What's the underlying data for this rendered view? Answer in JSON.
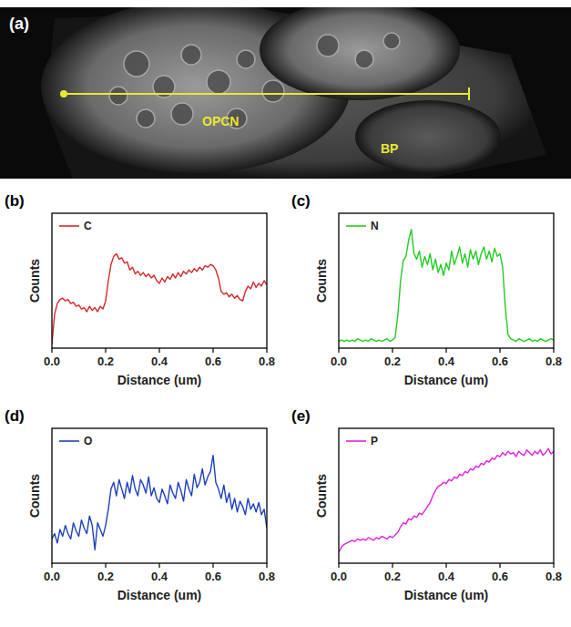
{
  "image": {
    "panel_label": "(a)",
    "labels": [
      "OPCN",
      "BP"
    ]
  },
  "chart_data": [
    {
      "type": "line",
      "panel_label": "(b)",
      "x_label": "Distance (um)",
      "y_label": "Counts",
      "xlim": [
        0,
        0.8
      ],
      "ylim": [
        0,
        100
      ],
      "xticks": [
        {
          "value": 0,
          "label": "0.0"
        },
        {
          "value": 0.2,
          "label": "0.2"
        },
        {
          "value": 0.4,
          "label": "0.4"
        },
        {
          "value": 0.6,
          "label": "0.6"
        },
        {
          "value": 0.8,
          "label": "0.8"
        }
      ],
      "tick_labels": "x",
      "grid": false,
      "legend": "upper left",
      "line_style": "solid",
      "x": [
        0,
        0.01,
        0.02,
        0.03,
        0.04,
        0.05,
        0.06,
        0.07,
        0.08,
        0.09,
        0.1,
        0.11,
        0.12,
        0.13,
        0.14,
        0.15,
        0.16,
        0.17,
        0.18,
        0.19,
        0.2,
        0.21,
        0.22,
        0.23,
        0.24,
        0.25,
        0.26,
        0.27,
        0.28,
        0.29,
        0.3,
        0.31,
        0.32,
        0.33,
        0.34,
        0.35,
        0.36,
        0.37,
        0.38,
        0.39,
        0.4,
        0.41,
        0.42,
        0.43,
        0.44,
        0.45,
        0.46,
        0.47,
        0.48,
        0.49,
        0.5,
        0.51,
        0.52,
        0.53,
        0.54,
        0.55,
        0.56,
        0.57,
        0.58,
        0.59,
        0.6,
        0.61,
        0.62,
        0.63,
        0.64,
        0.65,
        0.66,
        0.67,
        0.68,
        0.69,
        0.7,
        0.71,
        0.72,
        0.73,
        0.74,
        0.75,
        0.76,
        0.77,
        0.78,
        0.79,
        0.8
      ],
      "series": [
        {
          "name": "C",
          "color": "#d62728",
          "values": [
            3,
            25,
            33,
            36,
            37,
            35,
            36,
            33,
            34,
            31,
            32,
            29,
            30,
            27,
            31,
            28,
            30,
            27,
            31,
            29,
            35,
            50,
            62,
            68,
            70,
            66,
            67,
            63,
            64,
            58,
            60,
            55,
            57,
            54,
            56,
            53,
            55,
            52,
            54,
            50,
            48,
            52,
            49,
            53,
            51,
            55,
            52,
            56,
            53,
            57,
            55,
            58,
            56,
            59,
            57,
            60,
            58,
            61,
            60,
            62,
            61,
            58,
            52,
            42,
            40,
            41,
            38,
            40,
            37,
            39,
            36,
            35,
            42,
            46,
            44,
            49,
            45,
            48,
            46,
            50,
            47
          ]
        }
      ]
    },
    {
      "type": "line",
      "panel_label": "(c)",
      "x_label": "Distance (um)",
      "y_label": "Counts",
      "xlim": [
        0,
        0.8
      ],
      "ylim": [
        0,
        100
      ],
      "xticks": [
        {
          "value": 0,
          "label": "0.0"
        },
        {
          "value": 0.2,
          "label": "0.2"
        },
        {
          "value": 0.4,
          "label": "0.4"
        },
        {
          "value": 0.6,
          "label": "0.6"
        },
        {
          "value": 0.8,
          "label": "0.8"
        }
      ],
      "tick_labels": "x",
      "grid": false,
      "legend": "upper left",
      "line_style": "solid",
      "x": [
        0,
        0.01,
        0.02,
        0.03,
        0.04,
        0.05,
        0.06,
        0.07,
        0.08,
        0.09,
        0.1,
        0.11,
        0.12,
        0.13,
        0.14,
        0.15,
        0.16,
        0.17,
        0.18,
        0.19,
        0.2,
        0.21,
        0.22,
        0.23,
        0.24,
        0.25,
        0.26,
        0.27,
        0.28,
        0.29,
        0.3,
        0.31,
        0.32,
        0.33,
        0.34,
        0.35,
        0.36,
        0.37,
        0.38,
        0.39,
        0.4,
        0.41,
        0.42,
        0.43,
        0.44,
        0.45,
        0.46,
        0.47,
        0.48,
        0.49,
        0.5,
        0.51,
        0.52,
        0.53,
        0.54,
        0.55,
        0.56,
        0.57,
        0.58,
        0.59,
        0.6,
        0.61,
        0.62,
        0.63,
        0.64,
        0.65,
        0.66,
        0.67,
        0.68,
        0.69,
        0.7,
        0.71,
        0.72,
        0.73,
        0.74,
        0.75,
        0.76,
        0.77,
        0.78,
        0.79,
        0.8
      ],
      "series": [
        {
          "name": "N",
          "color": "#22cc22",
          "values": [
            5,
            6,
            5,
            6,
            5,
            6,
            5,
            7,
            6,
            5,
            6,
            5,
            7,
            6,
            5,
            6,
            5,
            6,
            7,
            5,
            6,
            8,
            25,
            50,
            65,
            68,
            80,
            88,
            70,
            66,
            72,
            60,
            68,
            62,
            70,
            58,
            66,
            56,
            62,
            54,
            63,
            58,
            72,
            62,
            68,
            75,
            63,
            70,
            60,
            73,
            66,
            72,
            62,
            70,
            75,
            66,
            72,
            64,
            74,
            68,
            70,
            60,
            30,
            10,
            7,
            6,
            5,
            7,
            6,
            5,
            6,
            7,
            5,
            6,
            5,
            7,
            6,
            5,
            6,
            7,
            6
          ]
        }
      ]
    },
    {
      "type": "line",
      "panel_label": "(d)",
      "x_label": "Distance (um)",
      "y_label": "Counts",
      "xlim": [
        0,
        0.8
      ],
      "ylim": [
        0,
        100
      ],
      "xticks": [
        {
          "value": 0,
          "label": "0.0"
        },
        {
          "value": 0.2,
          "label": "0.2"
        },
        {
          "value": 0.4,
          "label": "0.4"
        },
        {
          "value": 0.6,
          "label": "0.6"
        },
        {
          "value": 0.8,
          "label": "0.8"
        }
      ],
      "tick_labels": "x",
      "grid": false,
      "legend": "upper left",
      "line_style": "solid",
      "x": [
        0,
        0.01,
        0.02,
        0.03,
        0.04,
        0.05,
        0.06,
        0.07,
        0.08,
        0.09,
        0.1,
        0.11,
        0.12,
        0.13,
        0.14,
        0.15,
        0.16,
        0.17,
        0.18,
        0.19,
        0.2,
        0.21,
        0.22,
        0.23,
        0.24,
        0.25,
        0.26,
        0.27,
        0.28,
        0.29,
        0.3,
        0.31,
        0.32,
        0.33,
        0.34,
        0.35,
        0.36,
        0.37,
        0.38,
        0.39,
        0.4,
        0.41,
        0.42,
        0.43,
        0.44,
        0.45,
        0.46,
        0.47,
        0.48,
        0.49,
        0.5,
        0.51,
        0.52,
        0.53,
        0.54,
        0.55,
        0.56,
        0.57,
        0.58,
        0.59,
        0.6,
        0.61,
        0.62,
        0.63,
        0.64,
        0.65,
        0.66,
        0.67,
        0.68,
        0.69,
        0.7,
        0.71,
        0.72,
        0.73,
        0.74,
        0.75,
        0.76,
        0.77,
        0.78,
        0.79,
        0.8
      ],
      "series": [
        {
          "name": "O",
          "color": "#1f3fbf",
          "values": [
            18,
            22,
            15,
            25,
            20,
            28,
            22,
            18,
            30,
            24,
            20,
            32,
            26,
            22,
            35,
            28,
            10,
            30,
            25,
            20,
            28,
            40,
            55,
            60,
            50,
            62,
            55,
            48,
            60,
            52,
            65,
            55,
            50,
            62,
            58,
            52,
            64,
            50,
            56,
            48,
            45,
            55,
            50,
            44,
            58,
            52,
            48,
            60,
            54,
            46,
            62,
            55,
            50,
            66,
            56,
            60,
            70,
            58,
            64,
            68,
            80,
            60,
            55,
            48,
            58,
            45,
            52,
            40,
            48,
            38,
            46,
            42,
            36,
            48,
            40,
            44,
            38,
            45,
            36,
            40,
            26
          ]
        }
      ]
    },
    {
      "type": "line",
      "panel_label": "(e)",
      "x_label": "Distance (um)",
      "y_label": "Counts",
      "xlim": [
        0,
        0.8
      ],
      "ylim": [
        0,
        100
      ],
      "xticks": [
        {
          "value": 0,
          "label": "0.0"
        },
        {
          "value": 0.2,
          "label": "0.2"
        },
        {
          "value": 0.4,
          "label": "0.4"
        },
        {
          "value": 0.6,
          "label": "0.6"
        },
        {
          "value": 0.8,
          "label": "0.8"
        }
      ],
      "tick_labels": "x",
      "grid": false,
      "legend": "upper left",
      "line_style": "solid",
      "x": [
        0,
        0.01,
        0.02,
        0.03,
        0.04,
        0.05,
        0.06,
        0.07,
        0.08,
        0.09,
        0.1,
        0.11,
        0.12,
        0.13,
        0.14,
        0.15,
        0.16,
        0.17,
        0.18,
        0.19,
        0.2,
        0.21,
        0.22,
        0.23,
        0.24,
        0.25,
        0.26,
        0.27,
        0.28,
        0.29,
        0.3,
        0.31,
        0.32,
        0.33,
        0.34,
        0.35,
        0.36,
        0.37,
        0.38,
        0.39,
        0.4,
        0.41,
        0.42,
        0.43,
        0.44,
        0.45,
        0.46,
        0.47,
        0.48,
        0.49,
        0.5,
        0.51,
        0.52,
        0.53,
        0.54,
        0.55,
        0.56,
        0.57,
        0.58,
        0.59,
        0.6,
        0.61,
        0.62,
        0.63,
        0.64,
        0.65,
        0.66,
        0.67,
        0.68,
        0.69,
        0.7,
        0.71,
        0.72,
        0.73,
        0.74,
        0.75,
        0.76,
        0.77,
        0.78,
        0.79,
        0.8
      ],
      "series": [
        {
          "name": "P",
          "color": "#e020e0",
          "values": [
            8,
            12,
            14,
            15,
            16,
            17,
            16,
            18,
            17,
            18,
            17,
            19,
            18,
            17,
            19,
            18,
            20,
            19,
            18,
            20,
            19,
            21,
            23,
            27,
            30,
            29,
            33,
            32,
            35,
            34,
            37,
            36,
            39,
            42,
            45,
            50,
            54,
            57,
            58,
            60,
            59,
            62,
            61,
            64,
            63,
            66,
            65,
            68,
            67,
            70,
            69,
            72,
            71,
            74,
            73,
            76,
            75,
            78,
            77,
            80,
            79,
            82,
            80,
            83,
            81,
            82,
            79,
            83,
            81,
            80,
            84,
            82,
            80,
            83,
            81,
            84,
            80,
            82,
            85,
            81,
            83
          ]
        }
      ]
    }
  ]
}
